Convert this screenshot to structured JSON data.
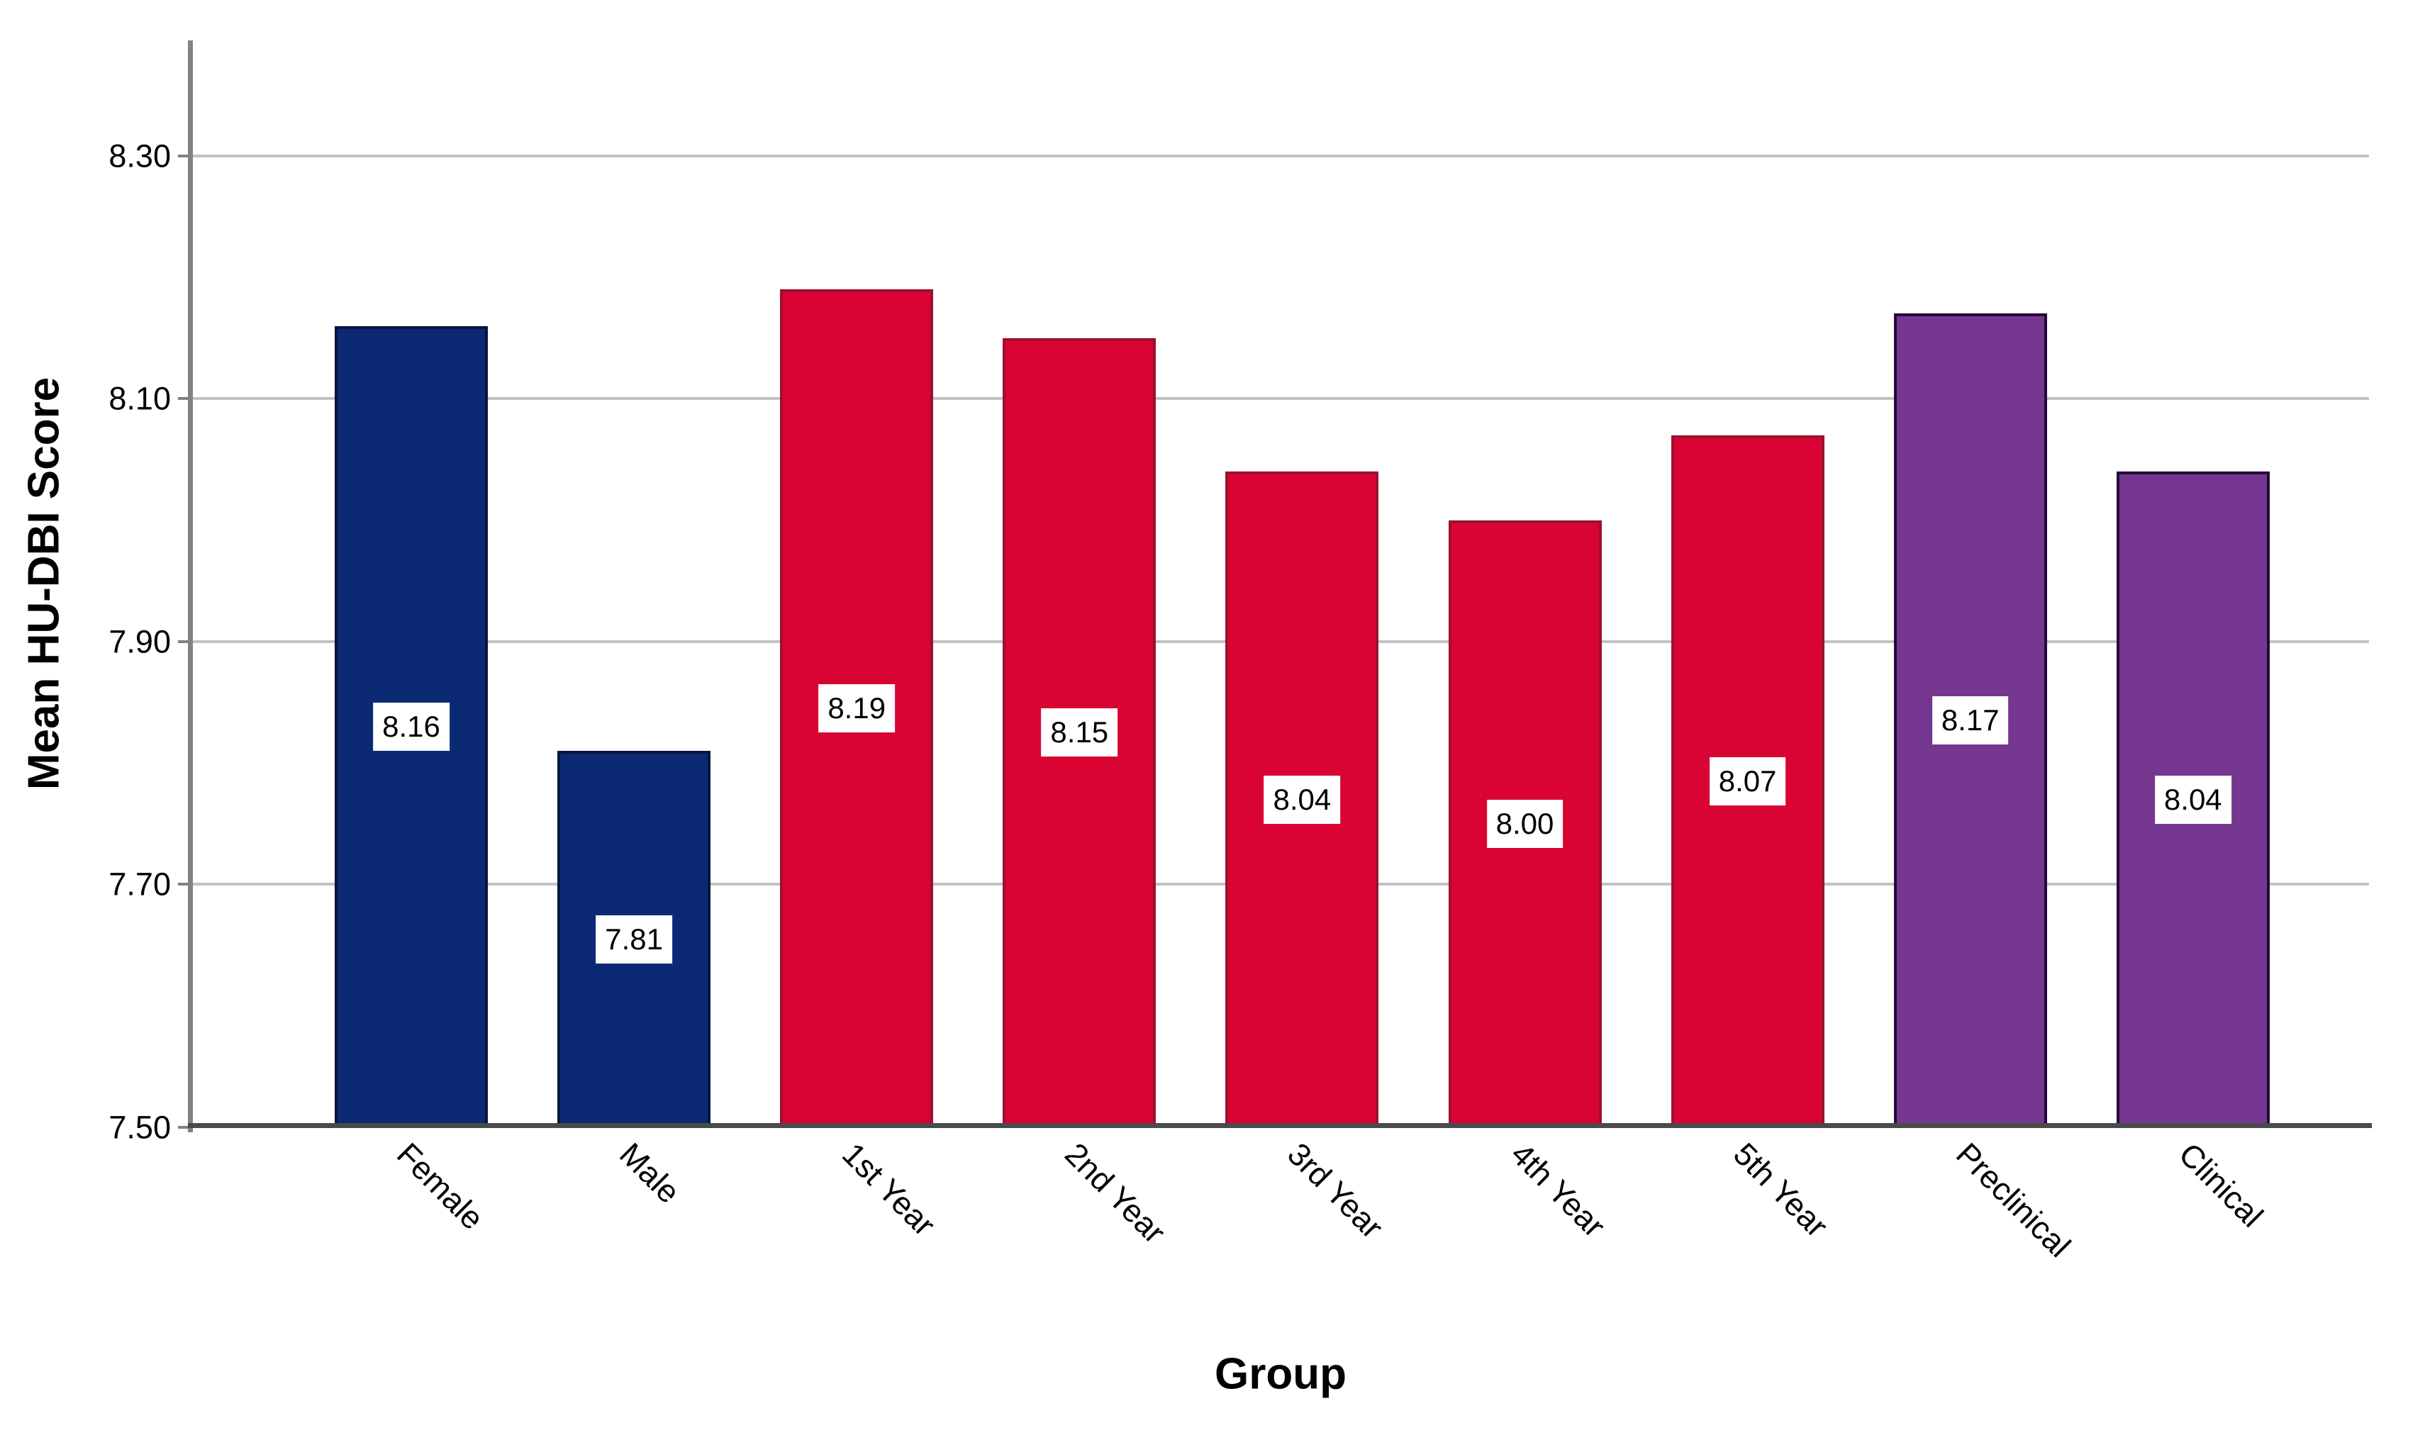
{
  "chart_data": {
    "type": "bar",
    "title": "",
    "xlabel": "Group",
    "ylabel": "Mean HU-DBI Score",
    "categories": [
      "Female",
      "Male",
      "1st Year",
      "2nd Year",
      "3rd Year",
      "4th Year",
      "5th Year",
      "Preclinical",
      "Clinical"
    ],
    "values": [
      8.16,
      7.81,
      8.19,
      8.15,
      8.04,
      8.0,
      8.07,
      8.17,
      8.04
    ],
    "value_labels": [
      "8.16",
      "7.81",
      "8.19",
      "8.15",
      "8.04",
      "8.00",
      "8.07",
      "8.17",
      "8.04"
    ],
    "bar_groups": [
      "gender",
      "gender",
      "year",
      "year",
      "year",
      "year",
      "year",
      "stage",
      "stage"
    ],
    "ylim": [
      7.5,
      8.395
    ],
    "yticks": [
      {
        "value": 7.5,
        "label": "7.50"
      },
      {
        "value": 7.7,
        "label": "7.70"
      },
      {
        "value": 7.9,
        "label": "7.90"
      },
      {
        "value": 8.1,
        "label": "8.10"
      },
      {
        "value": 8.3,
        "label": "8.30"
      }
    ],
    "grid": true,
    "legend_position": "none",
    "colors": {
      "gender_fill": "#0B2A73",
      "gender_border": "#071640",
      "year_fill": "#D90433",
      "year_border": "#9E1030",
      "stage_fill": "#75368F",
      "stage_border": "#230A37",
      "gridline": "#C2C2C2",
      "axis_x": "#4A4A4A",
      "axis_y": "#828282",
      "bar_label_bg": "#FFFFFF",
      "bar_label_text": "#000000",
      "background": "#FFFFFF"
    }
  }
}
